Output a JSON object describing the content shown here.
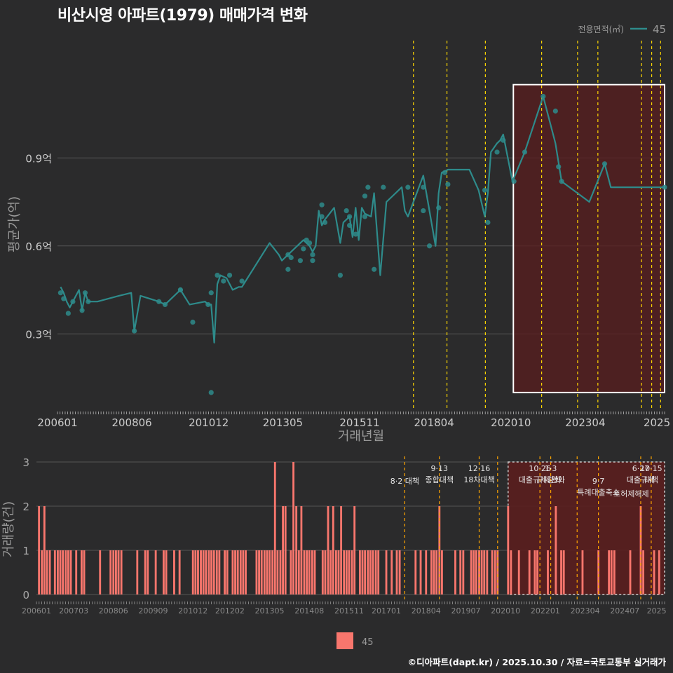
{
  "title": "비산시영 아파트(1979) 매매가격 변화",
  "footer": "©디아파트(dapt.kr) / 2025.10.30 / 자료=국토교통부 실거래가",
  "colors": {
    "background": "#2b2b2c",
    "line": "#2e8b8b",
    "bar": "#f8766d",
    "policy_line": "#ffd700",
    "highlight_fill": "#5a1e1e",
    "grid": "#555555",
    "text_light": "#cccccc",
    "text_dim": "#999999"
  },
  "chart_data": [
    {
      "type": "line",
      "name": "price",
      "title": "비산시영 아파트(1979) 매매가격 변화",
      "xlabel": "거래년월",
      "ylabel": "평균가(억)",
      "legend_title": "전용면적(㎡)",
      "legend": [
        "45"
      ],
      "legend_position": "top-right",
      "x_range": [
        2006.0,
        2025.75
      ],
      "ylim": [
        0.04,
        1.3
      ],
      "y_ticks": [
        0.3,
        0.6,
        0.9
      ],
      "y_tick_labels": [
        "0.3억",
        "0.6억",
        "0.9억"
      ],
      "x_tick_labels": [
        "200601",
        "200806",
        "201012",
        "201305",
        "201511",
        "201804",
        "202010",
        "202304",
        "2025"
      ],
      "x_tick_positions": [
        2006.0,
        2008.42,
        2010.92,
        2013.33,
        2015.83,
        2018.25,
        2020.75,
        2023.17,
        2025.5
      ],
      "highlight": {
        "x": [
          2020.83,
          2025.75
        ],
        "y": [
          0.1,
          1.15
        ]
      },
      "policy_dates": [
        2017.58,
        2018.67,
        2019.92,
        2021.75,
        2022.92,
        2023.58,
        2025.0,
        2025.33,
        2025.62
      ],
      "series": [
        {
          "name": "45",
          "x": [
            2006.1,
            2006.2,
            2006.3,
            2006.4,
            2006.5,
            2006.7,
            2006.8,
            2006.9,
            2007.0,
            2007.3,
            2008.0,
            2008.4,
            2008.5,
            2008.7,
            2009.3,
            2009.5,
            2010.0,
            2010.3,
            2010.8,
            2010.9,
            2011.0,
            2011.1,
            2011.2,
            2011.3,
            2011.5,
            2011.7,
            2011.9,
            2012.0,
            2012.9,
            2013.2,
            2013.3,
            2013.4,
            2013.9,
            2014.0,
            2014.2,
            2014.3,
            2014.4,
            2014.5,
            2014.6,
            2014.7,
            2015.0,
            2015.2,
            2015.3,
            2015.5,
            2015.6,
            2015.7,
            2015.8,
            2015.9,
            2016.0,
            2016.2,
            2016.3,
            2016.5,
            2016.7,
            2017.0,
            2017.2,
            2017.3,
            2017.4,
            2017.9,
            2018.0,
            2018.3,
            2018.4,
            2018.5,
            2018.7,
            2019.4,
            2019.7,
            2019.9,
            2020.0,
            2020.1,
            2020.3,
            2020.4,
            2020.5,
            2020.8,
            2021.2,
            2021.8,
            2022.2,
            2022.4,
            2023.3,
            2023.8,
            2024.0,
            2024.6,
            2025.75
          ],
          "values": [
            0.46,
            0.44,
            0.41,
            0.39,
            0.41,
            0.45,
            0.38,
            0.44,
            0.41,
            0.41,
            0.43,
            0.44,
            0.31,
            0.43,
            0.41,
            0.4,
            0.45,
            0.4,
            0.41,
            0.4,
            0.4,
            0.27,
            0.47,
            0.5,
            0.49,
            0.45,
            0.46,
            0.46,
            0.61,
            0.57,
            0.55,
            0.56,
            0.61,
            0.62,
            0.6,
            0.58,
            0.6,
            0.72,
            0.67,
            0.69,
            0.73,
            0.61,
            0.68,
            0.7,
            0.63,
            0.73,
            0.62,
            0.73,
            0.71,
            0.7,
            0.78,
            0.5,
            0.75,
            0.78,
            0.8,
            0.72,
            0.7,
            0.84,
            0.78,
            0.6,
            0.78,
            0.85,
            0.86,
            0.86,
            0.79,
            0.7,
            0.78,
            0.92,
            0.95,
            0.96,
            0.98,
            0.82,
            0.92,
            1.11,
            0.95,
            0.82,
            0.75,
            0.88,
            0.8,
            0.8,
            0.8
          ]
        }
      ],
      "scatter": {
        "x": [
          2006.1,
          2006.2,
          2006.35,
          2006.5,
          2006.8,
          2006.9,
          2007.0,
          2008.5,
          2009.3,
          2009.5,
          2010.0,
          2010.0,
          2010.4,
          2010.9,
          2011.0,
          2011.0,
          2011.2,
          2011.4,
          2011.6,
          2012.0,
          2013.5,
          2013.5,
          2013.6,
          2013.9,
          2014.0,
          2014.1,
          2014.2,
          2014.3,
          2014.3,
          2014.6,
          2014.6,
          2014.7,
          2015.2,
          2015.4,
          2015.5,
          2015.5,
          2015.7,
          2016.0,
          2016.0,
          2016.1,
          2016.3,
          2016.6,
          2017.4,
          2017.9,
          2017.9,
          2018.1,
          2018.4,
          2018.6,
          2018.7,
          2019.9,
          2020.0,
          2020.3,
          2020.5,
          2020.85,
          2021.2,
          2021.8,
          2022.2,
          2022.3,
          2022.4,
          2023.8,
          2025.75
        ],
        "values": [
          0.44,
          0.42,
          0.37,
          0.41,
          0.38,
          0.44,
          0.41,
          0.31,
          0.41,
          0.4,
          0.45,
          0.45,
          0.34,
          0.4,
          0.44,
          0.1,
          0.5,
          0.48,
          0.5,
          0.48,
          0.52,
          0.57,
          0.56,
          0.55,
          0.59,
          0.62,
          0.61,
          0.57,
          0.55,
          0.7,
          0.74,
          0.68,
          0.5,
          0.72,
          0.67,
          0.7,
          0.64,
          0.77,
          0.7,
          0.8,
          0.52,
          0.8,
          0.8,
          0.8,
          0.72,
          0.6,
          0.73,
          0.85,
          0.81,
          0.79,
          0.68,
          0.92,
          0.96,
          0.82,
          0.92,
          1.11,
          1.06,
          0.87,
          0.82,
          0.88,
          0.8
        ]
      }
    },
    {
      "type": "bar",
      "name": "volume",
      "xlabel": "",
      "ylabel": "거래량(건)",
      "legend": [
        "45"
      ],
      "legend_position": "bottom",
      "x_range": [
        2006.0,
        2025.75
      ],
      "ylim": [
        0,
        3.1
      ],
      "y_ticks": [
        0,
        1,
        2,
        3
      ],
      "y_tick_labels": [
        "0",
        "1",
        "2",
        "3"
      ],
      "x_tick_labels": [
        "200601",
        "200703",
        "200806",
        "200909",
        "201012",
        "201202",
        "201305",
        "201408",
        "201511",
        "201701",
        "201804",
        "201907",
        "202010",
        "202201",
        "202304",
        "202407",
        "2025"
      ],
      "x_tick_positions": [
        2006.0,
        2007.17,
        2008.42,
        2009.67,
        2010.92,
        2012.08,
        2013.33,
        2014.58,
        2015.83,
        2017.0,
        2018.25,
        2019.5,
        2020.75,
        2022.0,
        2023.25,
        2024.5,
        2025.5
      ],
      "highlight": {
        "x": [
          2020.83,
          2025.75
        ],
        "y": [
          0,
          3
        ]
      },
      "policy_dates": [
        2017.58,
        2018.67,
        2019.92,
        2020.5,
        2021.83,
        2022.17,
        2023.0,
        2023.67,
        2025.0,
        2025.33
      ],
      "annotations": [
        {
          "x": 2017.58,
          "lines": [
            "8·2 대책"
          ],
          "row": 1
        },
        {
          "x": 2018.67,
          "lines": [
            "9·13",
            "종합대책"
          ],
          "row": 0
        },
        {
          "x": 2019.92,
          "lines": [
            "12·16",
            "18차대책"
          ],
          "row": 0
        },
        {
          "x": 2021.83,
          "lines": [
            "10·26",
            "대출규제강화"
          ],
          "row": 0
        },
        {
          "x": 2022.17,
          "lines": [
            "1·3",
            "규제완화"
          ],
          "row": 0
        },
        {
          "x": 2023.67,
          "lines": [
            "9·7",
            "특례대출축소"
          ],
          "row": 1
        },
        {
          "x": 2024.7,
          "lines": [
            "토허제해제"
          ],
          "row": 2
        },
        {
          "x": 2025.0,
          "lines": [
            "6·27",
            "대출규제"
          ],
          "row": 0
        },
        {
          "x": 2025.33,
          "lines": [
            "10·15",
            "대책"
          ],
          "row": 0
        }
      ],
      "series": [
        {
          "name": "45",
          "x": [
            2006.08,
            2006.17,
            2006.25,
            2006.33,
            2006.42,
            2006.58,
            2006.67,
            2006.75,
            2006.83,
            2006.92,
            2007.0,
            2007.08,
            2007.25,
            2007.42,
            2007.5,
            2008.0,
            2008.33,
            2008.42,
            2008.5,
            2008.58,
            2008.67,
            2009.17,
            2009.42,
            2009.5,
            2009.75,
            2010.0,
            2010.08,
            2010.33,
            2010.5,
            2010.92,
            2011.0,
            2011.08,
            2011.17,
            2011.25,
            2011.33,
            2011.42,
            2011.5,
            2011.58,
            2011.67,
            2011.75,
            2011.92,
            2012.0,
            2012.17,
            2012.25,
            2012.33,
            2012.42,
            2012.5,
            2012.58,
            2012.92,
            2013.0,
            2013.08,
            2013.17,
            2013.25,
            2013.33,
            2013.42,
            2013.5,
            2013.58,
            2013.67,
            2013.75,
            2013.83,
            2014.0,
            2014.08,
            2014.17,
            2014.25,
            2014.33,
            2014.42,
            2014.5,
            2014.58,
            2014.67,
            2014.75,
            2015.0,
            2015.08,
            2015.17,
            2015.25,
            2015.33,
            2015.42,
            2015.5,
            2015.58,
            2015.67,
            2015.75,
            2015.83,
            2015.92,
            2016.0,
            2016.17,
            2016.25,
            2016.33,
            2016.42,
            2016.5,
            2016.58,
            2016.67,
            2016.75,
            2017.0,
            2017.17,
            2017.33,
            2017.42,
            2017.92,
            2018.08,
            2018.25,
            2018.42,
            2018.5,
            2018.58,
            2018.67,
            2018.75,
            2019.17,
            2019.33,
            2019.42,
            2019.67,
            2019.75,
            2019.83,
            2019.92,
            2020.0,
            2020.08,
            2020.17,
            2020.33,
            2020.42,
            2020.5,
            2020.83,
            2020.92,
            2021.17,
            2021.5,
            2021.67,
            2021.75,
            2022.08,
            2022.33,
            2022.5,
            2022.58,
            2023.17,
            2023.67,
            2024.0,
            2024.08,
            2024.17,
            2024.67,
            2025.0,
            2025.08,
            2025.42,
            2025.58
          ],
          "values": [
            2,
            1,
            2,
            1,
            1,
            1,
            1,
            1,
            1,
            1,
            1,
            1,
            1,
            1,
            1,
            1,
            1,
            1,
            1,
            1,
            1,
            1,
            1,
            1,
            1,
            1,
            1,
            1,
            1,
            1,
            1,
            1,
            1,
            1,
            1,
            1,
            1,
            1,
            1,
            1,
            1,
            1,
            1,
            1,
            1,
            1,
            1,
            1,
            1,
            1,
            1,
            1,
            1,
            1,
            1,
            3,
            1,
            1,
            2,
            2,
            1,
            3,
            2,
            1,
            2,
            1,
            1,
            1,
            1,
            1,
            1,
            1,
            2,
            1,
            2,
            1,
            1,
            2,
            1,
            1,
            1,
            1,
            2,
            1,
            1,
            1,
            1,
            1,
            1,
            1,
            1,
            1,
            1,
            1,
            1,
            1,
            1,
            1,
            1,
            1,
            1,
            2,
            1,
            1,
            1,
            1,
            1,
            1,
            1,
            1,
            1,
            1,
            1,
            1,
            1,
            1,
            2,
            1,
            1,
            1,
            1,
            1,
            1,
            2,
            1,
            1,
            1,
            1,
            1,
            1,
            1,
            1,
            2,
            1,
            1,
            1
          ]
        }
      ]
    }
  ]
}
